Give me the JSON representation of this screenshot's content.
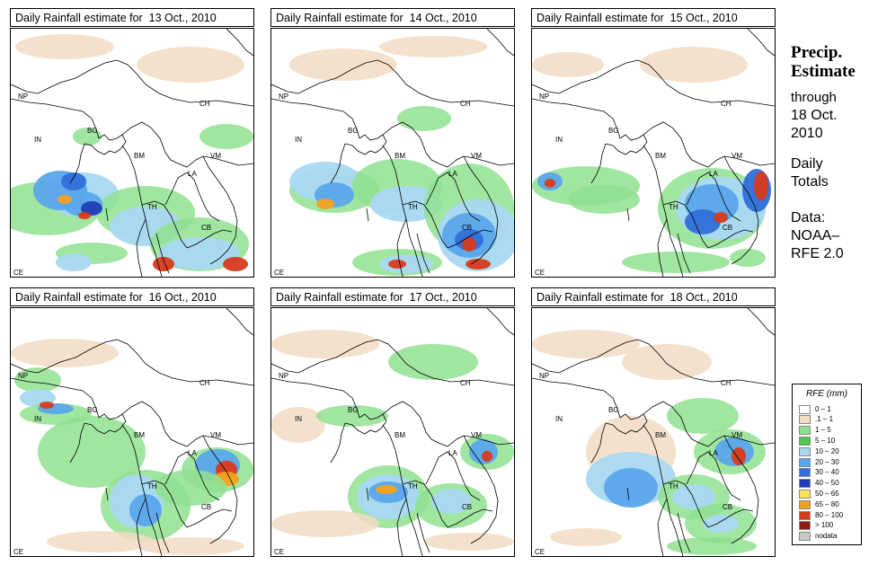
{
  "panels": [
    {
      "title": "Daily Rainfall estimate for  13 Oct., 2010",
      "day": 13
    },
    {
      "title": "Daily Rainfall estimate for  14 Oct., 2010",
      "day": 14
    },
    {
      "title": "Daily Rainfall estimate for  15 Oct., 2010",
      "day": 15
    },
    {
      "title": "Daily Rainfall estimate for  16 Oct., 2010",
      "day": 16
    },
    {
      "title": "Daily Rainfall estimate for  17 Oct., 2010",
      "day": 17
    },
    {
      "title": "Daily Rainfall estimate for  18 Oct., 2010",
      "day": 18
    }
  ],
  "country_labels": {
    "np": "NP",
    "ch": "CH",
    "in": "IN",
    "bg": "BG",
    "bm": "BM",
    "vm": "VM",
    "la": "LA",
    "th": "TH",
    "cb": "CB",
    "ce": "CE"
  },
  "side": {
    "title_1": "Precip.",
    "title_2": "Estimate",
    "through_1": "through",
    "through_2": "18 Oct.",
    "through_3": "2010",
    "daily_1": "Daily",
    "daily_2": "Totals",
    "data_1": "Data:",
    "data_2": "NOAA–",
    "data_3": "RFE 2.0"
  },
  "legend": {
    "title": "RFE (mm)",
    "items": [
      {
        "label": "0 – 1",
        "color": "#ffffff"
      },
      {
        "label": ".1 – 1",
        "color": "#f2dcc4"
      },
      {
        "label": "1 – 5",
        "color": "#8fe08f"
      },
      {
        "label": "5 – 10",
        "color": "#4fc84f"
      },
      {
        "label": "10 – 20",
        "color": "#a9d8f2"
      },
      {
        "label": "20 – 30",
        "color": "#5aa6ea"
      },
      {
        "label": "30 – 40",
        "color": "#2f6fd8"
      },
      {
        "label": "40 – 50",
        "color": "#1f3fb8"
      },
      {
        "label": "50 – 65",
        "color": "#f7e35a"
      },
      {
        "label": "65 – 80",
        "color": "#f2a21e"
      },
      {
        "label": "80 – 100",
        "color": "#d83a1c"
      },
      {
        "label": "> 100",
        "color": "#8a1a12"
      },
      {
        "label": "nodata",
        "color": "#c8c8c8"
      }
    ]
  }
}
